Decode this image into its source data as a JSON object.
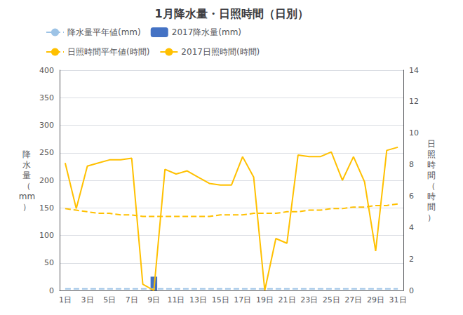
{
  "chart_data": {
    "type": "bar",
    "title": "1月降水量・日照時間（日別）",
    "categories": [
      "1日",
      null,
      "3日",
      null,
      "5日",
      null,
      "7日",
      null,
      "9日",
      null,
      "11日",
      null,
      "13日",
      null,
      "15日",
      null,
      "17日",
      null,
      "19日",
      null,
      "21日",
      null,
      "23日",
      null,
      "25日",
      null,
      "27日",
      null,
      "29日",
      null,
      "31日"
    ],
    "ylabel": "降\n水\n量\n（\nmm\n）",
    "y2label": "日\n照\n時\n間\n（\n時\n間\n）",
    "ylim": [
      0,
      400
    ],
    "yticks": [
      0,
      50,
      100,
      150,
      200,
      250,
      300,
      350,
      400
    ],
    "y2lim": [
      0,
      14
    ],
    "y2ticks": [
      0,
      2,
      4,
      6,
      8,
      10,
      12,
      14
    ],
    "grid": true,
    "legend": "upper left",
    "series": [
      {
        "name": "降水量平年値(mm)",
        "type": "line",
        "line_style": "dashed",
        "color": "#9DC3E6",
        "values": [
          3,
          3,
          3,
          3,
          3,
          3,
          3,
          3,
          3,
          3,
          3,
          3,
          3,
          3,
          3,
          3,
          3,
          3,
          3,
          3,
          3,
          3,
          3,
          3,
          3,
          3,
          3,
          3,
          3,
          3,
          3
        ]
      },
      {
        "name": "2017降水量(mm)",
        "type": "bar",
        "color": "#4472C4",
        "values": [
          0,
          0,
          0,
          0,
          0,
          0,
          0,
          0,
          25,
          0,
          0,
          0,
          0,
          0,
          0,
          0,
          0,
          0,
          0,
          0,
          0,
          0,
          0,
          0,
          0,
          0,
          0,
          0,
          0,
          0,
          0
        ]
      },
      {
        "name": "日照時間平年値(時間)",
        "type": "line",
        "line_style": "dashed",
        "color": "#FFC000",
        "axis": "y2",
        "values": [
          5.2,
          5.1,
          5.0,
          4.9,
          4.9,
          4.8,
          4.8,
          4.7,
          4.7,
          4.7,
          4.7,
          4.7,
          4.7,
          4.7,
          4.8,
          4.8,
          4.8,
          4.9,
          4.9,
          4.9,
          5.0,
          5.0,
          5.1,
          5.1,
          5.2,
          5.2,
          5.3,
          5.3,
          5.4,
          5.4,
          5.5
        ]
      },
      {
        "name": "2017日照時間(時間)",
        "type": "line",
        "line_style": "solid",
        "color": "#FFC000",
        "axis": "y2",
        "values": [
          8.1,
          5.2,
          7.9,
          8.1,
          8.3,
          8.3,
          8.4,
          0.4,
          0.0,
          7.7,
          7.4,
          7.6,
          7.2,
          6.8,
          6.7,
          6.7,
          8.5,
          7.2,
          0.0,
          3.3,
          3.0,
          8.6,
          8.5,
          8.5,
          8.8,
          7.0,
          8.5,
          6.9,
          2.5,
          8.9,
          9.1
        ]
      }
    ]
  }
}
